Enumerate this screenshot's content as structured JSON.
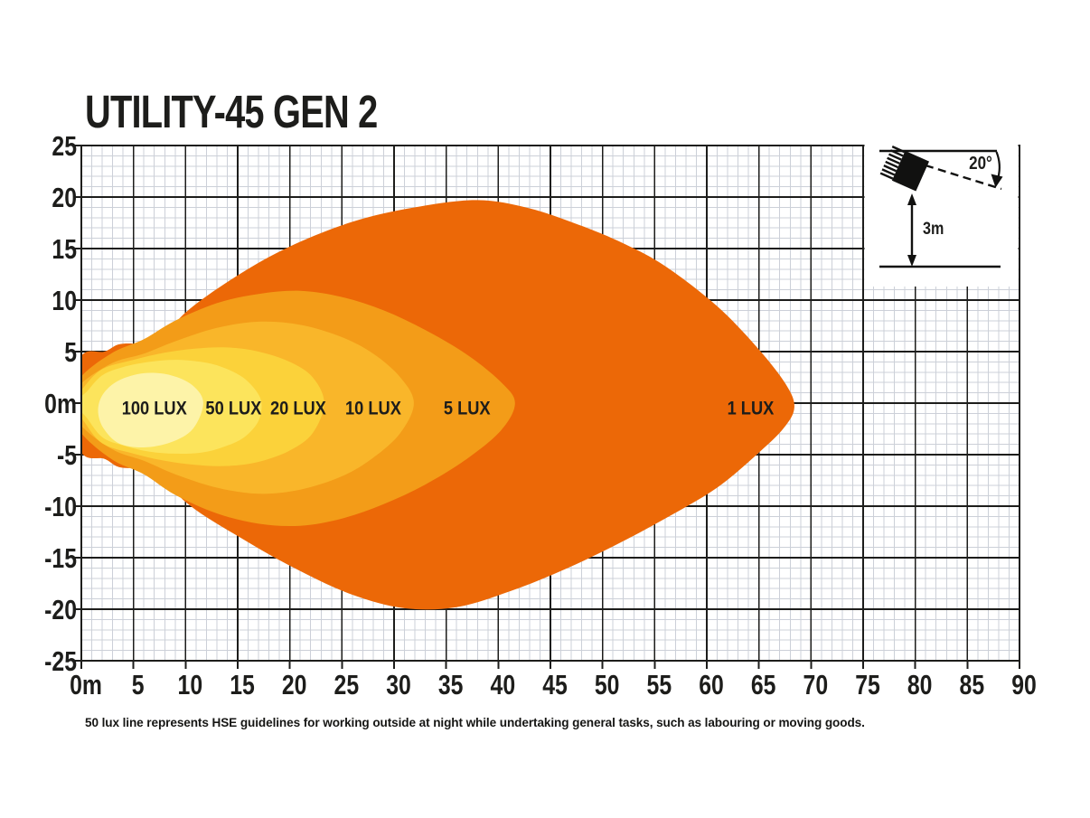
{
  "page": {
    "title": "UTILITY-45 GEN 2",
    "footnote": "50 lux line represents HSE guidelines for working outside at night while undertaking general tasks, such as labouring or moving goods."
  },
  "colors": {
    "text": "#1d1d1b",
    "background": "#ffffff",
    "grid_minor": "#ccd0d8",
    "grid_major": "#1d1d1b"
  },
  "chart_data": {
    "type": "area",
    "subtype": "isolux-beam-pattern",
    "title": "UTILITY-45 GEN 2",
    "x_unit": "m",
    "y_unit": "m",
    "xlim": [
      0,
      90
    ],
    "ylim": [
      -25,
      25
    ],
    "grid": {
      "minor_step": 1,
      "major_step": 5
    },
    "x_ticks": {
      "values": [
        0,
        5,
        10,
        15,
        20,
        25,
        30,
        35,
        40,
        45,
        50,
        55,
        60,
        65,
        70,
        75,
        80,
        85,
        90
      ],
      "labels": [
        "0m",
        "5",
        "10",
        "15",
        "20",
        "25",
        "30",
        "35",
        "40",
        "45",
        "50",
        "55",
        "60",
        "65",
        "70",
        "75",
        "80",
        "85",
        "90"
      ]
    },
    "y_ticks": {
      "values": [
        25,
        20,
        15,
        10,
        5,
        0,
        -5,
        -10,
        -15,
        -20,
        -25
      ],
      "labels": [
        "25",
        "20",
        "15",
        "10",
        "5",
        "0m",
        "-5",
        "-10",
        "-15",
        "-20",
        "-25"
      ]
    },
    "contours": [
      {
        "label": "1 LUX",
        "lux": 1,
        "color": "#ec6807",
        "label_pos_m": [
          64.2,
          -0.4
        ],
        "outline_m": [
          [
            -1.6,
            0
          ],
          [
            0,
            4.6
          ],
          [
            2.2,
            5.0
          ],
          [
            3.6,
            5.7
          ],
          [
            5.4,
            5.7
          ],
          [
            6.6,
            5.0
          ],
          [
            10,
            8.8
          ],
          [
            15,
            12.4
          ],
          [
            20,
            15.2
          ],
          [
            26,
            17.6
          ],
          [
            32,
            19.0
          ],
          [
            38,
            19.7
          ],
          [
            43,
            18.9
          ],
          [
            48,
            17.2
          ],
          [
            52,
            15.5
          ],
          [
            56,
            13.3
          ],
          [
            61,
            9.4
          ],
          [
            65,
            5.2
          ],
          [
            67.6,
            1.8
          ],
          [
            68.4,
            -0.4
          ],
          [
            67.4,
            -2.4
          ],
          [
            65,
            -4.8
          ],
          [
            61,
            -8.2
          ],
          [
            56,
            -11.2
          ],
          [
            51,
            -13.9
          ],
          [
            46,
            -16.3
          ],
          [
            41,
            -18.3
          ],
          [
            36,
            -19.8
          ],
          [
            31,
            -19.9
          ],
          [
            26,
            -18.6
          ],
          [
            21,
            -16.3
          ],
          [
            16,
            -13.5
          ],
          [
            10,
            -9.6
          ],
          [
            6.6,
            -5.4
          ],
          [
            5.4,
            -6.2
          ],
          [
            3.6,
            -6.2
          ],
          [
            2.2,
            -5.4
          ],
          [
            0,
            -4.8
          ]
        ]
      },
      {
        "label": "5 LUX",
        "lux": 5,
        "color": "#f39c18",
        "label_pos_m": [
          37.0,
          -0.4
        ],
        "outline_m": [
          [
            -1.2,
            0
          ],
          [
            0,
            2.6
          ],
          [
            3,
            4.9
          ],
          [
            6,
            6.2
          ],
          [
            9,
            8.0
          ],
          [
            13,
            9.7
          ],
          [
            17,
            10.6
          ],
          [
            21,
            10.9
          ],
          [
            25,
            10.3
          ],
          [
            29,
            9.0
          ],
          [
            33,
            7.1
          ],
          [
            37,
            4.7
          ],
          [
            40.3,
            2.0
          ],
          [
            41.6,
            0
          ],
          [
            40.3,
            -2.6
          ],
          [
            37,
            -5.4
          ],
          [
            33,
            -7.9
          ],
          [
            29,
            -9.8
          ],
          [
            25,
            -11.2
          ],
          [
            21,
            -11.9
          ],
          [
            17,
            -11.7
          ],
          [
            13,
            -10.7
          ],
          [
            9,
            -8.9
          ],
          [
            6,
            -6.9
          ],
          [
            3,
            -5.5
          ],
          [
            0,
            -2.9
          ]
        ]
      },
      {
        "label": "10 LUX",
        "lux": 10,
        "color": "#f9b62a",
        "label_pos_m": [
          28.0,
          -0.4
        ],
        "outline_m": [
          [
            -1.0,
            0
          ],
          [
            0,
            1.9
          ],
          [
            3,
            3.9
          ],
          [
            6,
            4.8
          ],
          [
            9,
            6.0
          ],
          [
            13,
            7.3
          ],
          [
            17,
            7.9
          ],
          [
            21,
            7.6
          ],
          [
            25,
            6.4
          ],
          [
            28,
            4.8
          ],
          [
            30.6,
            2.5
          ],
          [
            31.9,
            0
          ],
          [
            30.6,
            -2.9
          ],
          [
            28,
            -5.3
          ],
          [
            25,
            -7.1
          ],
          [
            21,
            -8.4
          ],
          [
            17,
            -8.8
          ],
          [
            13,
            -8.2
          ],
          [
            9,
            -6.9
          ],
          [
            6,
            -5.6
          ],
          [
            3,
            -4.5
          ],
          [
            0,
            -2.2
          ]
        ]
      },
      {
        "label": "20 LUX",
        "lux": 20,
        "color": "#fbd23a",
        "label_pos_m": [
          20.8,
          -0.4
        ],
        "outline_m": [
          [
            -0.8,
            0
          ],
          [
            0.2,
            1.5
          ],
          [
            2,
            3.3
          ],
          [
            5,
            4.2
          ],
          [
            8,
            4.9
          ],
          [
            11,
            5.3
          ],
          [
            14,
            5.4
          ],
          [
            17,
            5.0
          ],
          [
            20,
            4.0
          ],
          [
            22.2,
            2.5
          ],
          [
            23.3,
            0
          ],
          [
            22.2,
            -2.9
          ],
          [
            20,
            -4.6
          ],
          [
            17,
            -5.7
          ],
          [
            14,
            -6.1
          ],
          [
            11,
            -6.0
          ],
          [
            8,
            -5.6
          ],
          [
            5,
            -4.9
          ],
          [
            2,
            -3.9
          ],
          [
            0.2,
            -1.7
          ]
        ]
      },
      {
        "label": "50 LUX",
        "lux": 50,
        "color": "#fce45c",
        "label_pos_m": [
          14.6,
          -0.4
        ],
        "outline_m": [
          [
            -0.6,
            0
          ],
          [
            0.5,
            1.1
          ],
          [
            2,
            2.7
          ],
          [
            4,
            3.5
          ],
          [
            6.5,
            4.0
          ],
          [
            9,
            4.2
          ],
          [
            11.5,
            4.0
          ],
          [
            13.5,
            3.5
          ],
          [
            15.5,
            2.5
          ],
          [
            16.9,
            1.0
          ],
          [
            17.3,
            -0.3
          ],
          [
            16.9,
            -1.9
          ],
          [
            15.5,
            -3.4
          ],
          [
            13.5,
            -4.3
          ],
          [
            11.5,
            -4.8
          ],
          [
            9,
            -4.9
          ],
          [
            6.5,
            -4.7
          ],
          [
            4,
            -4.1
          ],
          [
            2,
            -3.3
          ],
          [
            0.5,
            -1.4
          ]
        ]
      },
      {
        "label": "100 LUX",
        "lux": 100,
        "color": "#fdf3a8",
        "label_pos_m": [
          7.0,
          -0.4
        ],
        "outline_m": [
          [
            1.6,
            -0.7
          ],
          [
            2.1,
            0.9
          ],
          [
            3.6,
            2.2
          ],
          [
            6,
            2.9
          ],
          [
            8.6,
            2.7
          ],
          [
            10.7,
            1.7
          ],
          [
            11.7,
            0.0
          ],
          [
            10.7,
            -2.5
          ],
          [
            8.6,
            -3.8
          ],
          [
            6,
            -4.3
          ],
          [
            3.6,
            -3.9
          ],
          [
            2.1,
            -2.4
          ]
        ]
      }
    ],
    "inset": {
      "angle_label": "20°",
      "height_label": "3m",
      "mount_tilt_deg": 20,
      "mount_height_m": 3
    }
  }
}
